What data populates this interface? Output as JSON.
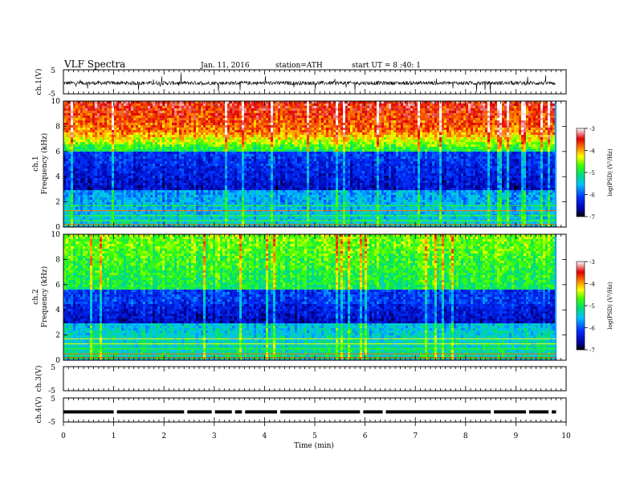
{
  "header": {
    "title": "VLF  Spectra",
    "date": "Jan. 11, 2016",
    "station": "station=ATH",
    "start": "start  UT =   8 :40: 1"
  },
  "x_axis": {
    "label": "Time  (min)",
    "range": [
      0,
      10
    ],
    "ticks": [
      "0",
      "1",
      "2",
      "3",
      "4",
      "5",
      "6",
      "7",
      "8",
      "9",
      "10"
    ]
  },
  "colors": {
    "high": "#e00000",
    "mid_high": "#ffd700",
    "mid": "#00e060",
    "mid_low": "#00a0ff",
    "low": "#0000b0",
    "floor": "#000020"
  },
  "chart_data": [
    {
      "type": "line",
      "name": "ch1-waveform",
      "ylabel": "ch.1(V)",
      "yticks": [
        "5",
        "-5"
      ],
      "ylim": [
        -5,
        5
      ],
      "x_range": [
        0,
        9.8
      ],
      "baseline": -0.5
    },
    {
      "type": "heatmap",
      "name": "ch1-spectrogram",
      "ylabel": "ch.1\nFrequency  (kHz)",
      "ylabel_lines": [
        "ch.1",
        "Frequency  (kHz)"
      ],
      "ylim": [
        0,
        10
      ],
      "yticks": [
        "10",
        "8",
        "6",
        "4",
        "2",
        "0"
      ],
      "x_range": [
        0,
        9.8
      ],
      "colorbar": {
        "label": "log(PSD) (V²/Hz)",
        "ticks": [
          "-3",
          "-4",
          "-5",
          "-6",
          "-7"
        ],
        "range": [
          -7,
          -3
        ]
      }
    },
    {
      "type": "heatmap",
      "name": "ch2-spectrogram",
      "ylabel": "ch.2\nFrequency  (kHz)",
      "ylabel_lines": [
        "ch.2",
        "Frequency  (kHz)"
      ],
      "ylim": [
        0,
        10
      ],
      "yticks": [
        "10",
        "8",
        "6",
        "4",
        "2",
        "0"
      ],
      "x_range": [
        0,
        9.8
      ],
      "colorbar": {
        "label": "log(PSD) (V²/Hz)",
        "ticks": [
          "-3",
          "-4",
          "-5",
          "-6",
          "-7"
        ],
        "range": [
          -7,
          -3
        ]
      }
    },
    {
      "type": "line",
      "name": "ch3-waveform",
      "ylabel": "ch.3(V)",
      "yticks": [
        "5",
        "-5"
      ],
      "ylim": [
        -5,
        5
      ],
      "x_range": [
        0,
        9.8
      ]
    },
    {
      "type": "line",
      "name": "ch4-waveform",
      "ylabel": "ch.4(V)",
      "yticks": [
        "5",
        "-5"
      ],
      "ylim": [
        -5,
        5
      ],
      "x_range": [
        0,
        9.8
      ],
      "baseline": -0.8
    }
  ]
}
